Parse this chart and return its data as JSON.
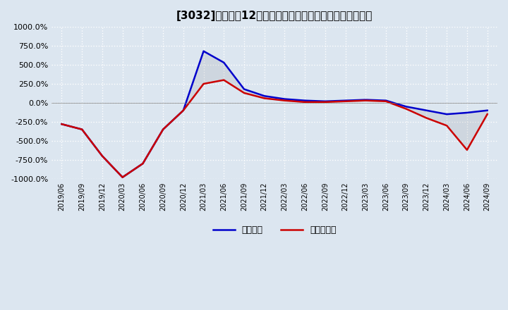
{
  "title": "[3032]　利益の12か月移動合計の対前年同期増減率の推移",
  "xlabel": "",
  "ylabel": "",
  "ylim": [
    -1000,
    1000
  ],
  "yticks": [
    -1000,
    -750,
    -500,
    -250,
    0,
    250,
    500,
    750,
    1000
  ],
  "ytick_labels": [
    "-1000.0%",
    "-750.0%",
    "-500.0%",
    "-250.0%",
    "0.0%",
    "250.0%",
    "500.0%",
    "750.0%",
    "1000.0%"
  ],
  "bg_color": "#dce6f0",
  "grid_color": "#ffffff",
  "legend": [
    "経常利益",
    "当期純利益"
  ],
  "line_colors": [
    "#0000cc",
    "#cc0000"
  ],
  "dates": [
    "2019/06",
    "2019/09",
    "2019/12",
    "2020/03",
    "2020/06",
    "2020/09",
    "2020/12",
    "2021/03",
    "2021/06",
    "2021/09",
    "2021/12",
    "2022/03",
    "2022/06",
    "2022/09",
    "2022/12",
    "2023/03",
    "2023/06",
    "2023/09",
    "2023/12",
    "2024/03",
    "2024/06",
    "2024/09"
  ],
  "keijo_rieki": [
    -280,
    -350,
    -700,
    -980,
    -800,
    -350,
    -100,
    680,
    530,
    180,
    90,
    50,
    30,
    20,
    30,
    40,
    30,
    -50,
    -100,
    -150,
    -130,
    -100
  ],
  "touki_junnrieki": [
    -280,
    -350,
    -700,
    -980,
    -800,
    -350,
    -100,
    250,
    300,
    130,
    60,
    30,
    10,
    10,
    20,
    30,
    20,
    -80,
    -200,
    -300,
    -620,
    -150
  ]
}
